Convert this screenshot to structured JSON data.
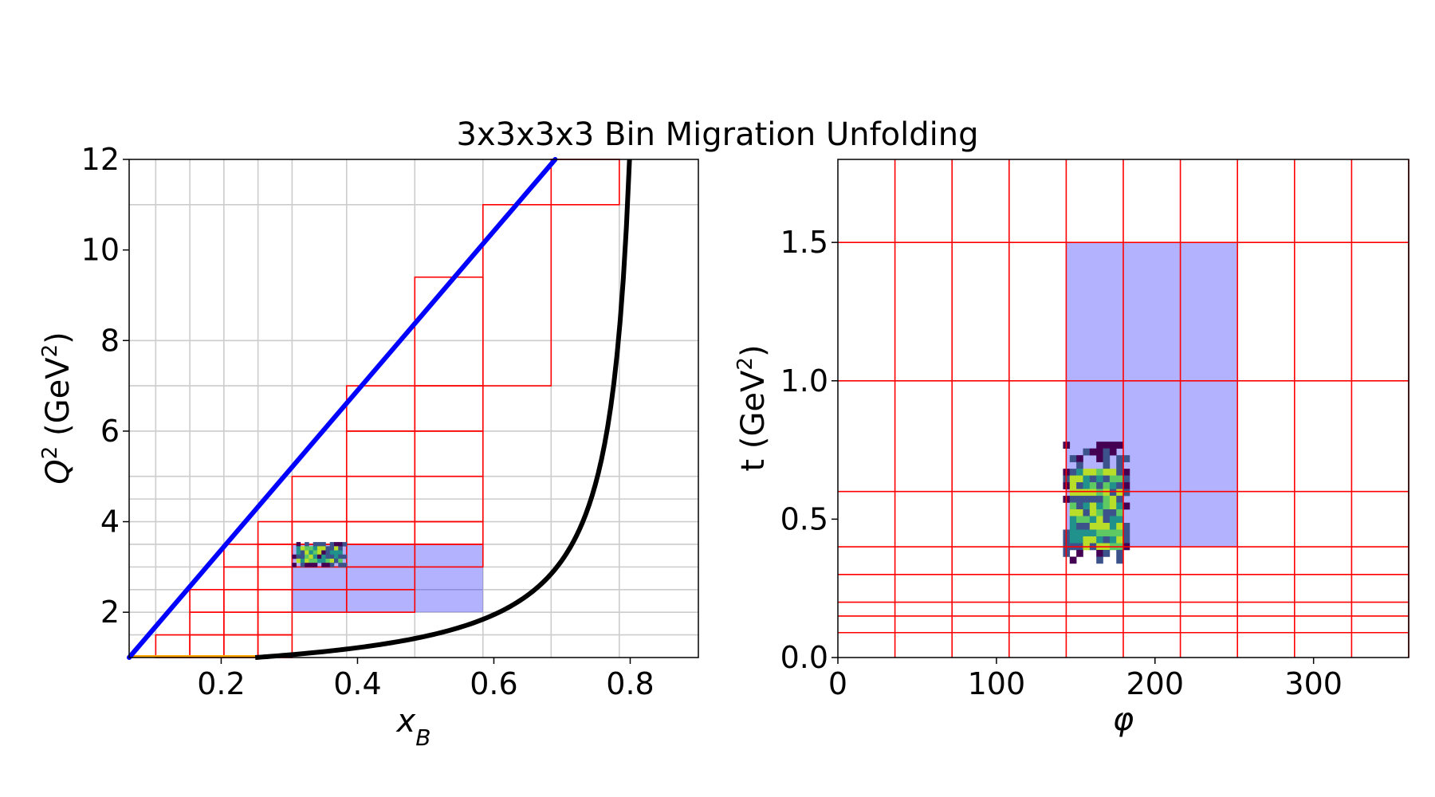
{
  "figure": {
    "title": "3x3x3x3 Bin Migration Unfolding"
  },
  "chart_data": [
    {
      "type": "heatmap",
      "xlabel_main": "x",
      "xlabel_sub": "B",
      "ylabel_main": "Q",
      "ylabel_sup": "2",
      "ylabel_mid": " (GeV",
      "ylabel_sup2": "2",
      "ylabel_end": ")",
      "xlim": [
        0.065,
        0.9
      ],
      "ylim": [
        1,
        12
      ],
      "x_ticks": [
        0.2,
        0.4,
        0.6,
        0.8
      ],
      "x_tick_labels": [
        "0.2",
        "0.4",
        "0.6",
        "0.8"
      ],
      "y_ticks": [
        2,
        4,
        6,
        8,
        10,
        12
      ],
      "y_tick_labels": [
        "2",
        "4",
        "6",
        "8",
        "10",
        "12"
      ],
      "grid": true,
      "grid_x": [
        0.104,
        0.154,
        0.204,
        0.254,
        0.304,
        0.384,
        0.484,
        0.584,
        0.684,
        0.784
      ],
      "grid_y": [
        1.5,
        2.0,
        2.5,
        3.0,
        3.5,
        4.0,
        4.5,
        5.0,
        6.0,
        7.0,
        8.0,
        11.0
      ],
      "red_bins": [
        {
          "x": [
            0.104,
            0.154
          ],
          "y": [
            1.0,
            1.5
          ]
        },
        {
          "x": [
            0.154,
            0.204
          ],
          "y": [
            1.0,
            1.5
          ]
        },
        {
          "x": [
            0.154,
            0.204
          ],
          "y": [
            1.5,
            2.0
          ]
        },
        {
          "x": [
            0.154,
            0.204
          ],
          "y": [
            2.0,
            2.5
          ]
        },
        {
          "x": [
            0.204,
            0.254
          ],
          "y": [
            1.0,
            1.5
          ]
        },
        {
          "x": [
            0.204,
            0.254
          ],
          "y": [
            1.5,
            2.0
          ]
        },
        {
          "x": [
            0.204,
            0.254
          ],
          "y": [
            2.0,
            2.5
          ]
        },
        {
          "x": [
            0.204,
            0.254
          ],
          "y": [
            2.5,
            3.0
          ]
        },
        {
          "x": [
            0.204,
            0.254
          ],
          "y": [
            3.0,
            3.5
          ]
        },
        {
          "x": [
            0.254,
            0.304
          ],
          "y": [
            1.0,
            1.5
          ]
        },
        {
          "x": [
            0.254,
            0.304
          ],
          "y": [
            1.5,
            2.0
          ]
        },
        {
          "x": [
            0.254,
            0.304
          ],
          "y": [
            2.0,
            2.5
          ]
        },
        {
          "x": [
            0.254,
            0.304
          ],
          "y": [
            2.5,
            3.0
          ]
        },
        {
          "x": [
            0.254,
            0.304
          ],
          "y": [
            3.0,
            3.5
          ]
        },
        {
          "x": [
            0.254,
            0.304
          ],
          "y": [
            3.5,
            4.0
          ]
        },
        {
          "x": [
            0.304,
            0.384
          ],
          "y": [
            2.0,
            2.5
          ]
        },
        {
          "x": [
            0.304,
            0.384
          ],
          "y": [
            2.5,
            3.0
          ]
        },
        {
          "x": [
            0.304,
            0.384
          ],
          "y": [
            3.0,
            3.5
          ]
        },
        {
          "x": [
            0.304,
            0.384
          ],
          "y": [
            3.5,
            4.0
          ]
        },
        {
          "x": [
            0.304,
            0.384
          ],
          "y": [
            4.0,
            5.0
          ]
        },
        {
          "x": [
            0.384,
            0.484
          ],
          "y": [
            2.0,
            2.5
          ]
        },
        {
          "x": [
            0.384,
            0.484
          ],
          "y": [
            2.5,
            3.0
          ]
        },
        {
          "x": [
            0.384,
            0.484
          ],
          "y": [
            3.0,
            3.5
          ]
        },
        {
          "x": [
            0.384,
            0.484
          ],
          "y": [
            3.5,
            4.0
          ]
        },
        {
          "x": [
            0.384,
            0.484
          ],
          "y": [
            4.0,
            5.0
          ]
        },
        {
          "x": [
            0.384,
            0.484
          ],
          "y": [
            5.0,
            6.0
          ]
        },
        {
          "x": [
            0.384,
            0.484
          ],
          "y": [
            6.0,
            7.0
          ]
        },
        {
          "x": [
            0.484,
            0.584
          ],
          "y": [
            3.0,
            3.5
          ]
        },
        {
          "x": [
            0.484,
            0.584
          ],
          "y": [
            3.5,
            4.0
          ]
        },
        {
          "x": [
            0.484,
            0.584
          ],
          "y": [
            4.0,
            5.0
          ]
        },
        {
          "x": [
            0.484,
            0.584
          ],
          "y": [
            5.0,
            6.0
          ]
        },
        {
          "x": [
            0.484,
            0.584
          ],
          "y": [
            6.0,
            7.0
          ]
        },
        {
          "x": [
            0.484,
            0.584
          ],
          "y": [
            7.0,
            9.4
          ]
        },
        {
          "x": [
            0.584,
            0.684
          ],
          "y": [
            7.0,
            11.0
          ]
        },
        {
          "x": [
            0.684,
            0.784
          ],
          "y": [
            11.0,
            12.0
          ]
        }
      ],
      "highlight_bin": {
        "x": [
          0.304,
          0.584
        ],
        "y": [
          2.0,
          3.5
        ]
      },
      "blue_line": {
        "x": [
          0.065,
          0.69
        ],
        "y": [
          1.0,
          12.0
        ]
      },
      "black_curve": {
        "x_start": 0.25,
        "x_end": 0.799
      },
      "orange_line": {
        "x": [
          0.065,
          0.25
        ],
        "y": [
          1.0,
          1.0
        ]
      },
      "heatmap_cells": {
        "x_range": [
          0.304,
          0.384
        ],
        "y_range": [
          3.0,
          3.55
        ],
        "nx": 13,
        "ny": 6
      }
    },
    {
      "type": "heatmap",
      "xlabel": "φ",
      "ylabel_main": "t (GeV",
      "ylabel_sup": "2",
      "ylabel_end": ")",
      "xlim": [
        0,
        360
      ],
      "ylim": [
        0,
        1.8
      ],
      "x_ticks": [
        0,
        100,
        200,
        300
      ],
      "x_tick_labels": [
        "0",
        "100",
        "200",
        "300"
      ],
      "y_ticks": [
        0.0,
        0.5,
        1.0,
        1.5
      ],
      "y_tick_labels": [
        "0.0",
        "0.5",
        "1.0",
        "1.5"
      ],
      "grid_x": [
        36,
        72,
        108,
        144,
        180,
        216,
        252,
        288,
        324,
        360
      ],
      "grid_y": [
        0.09,
        0.15,
        0.2,
        0.3,
        0.4,
        0.6,
        1.0,
        1.5
      ],
      "highlight_bin": {
        "x": [
          144,
          252
        ],
        "y": [
          0.4,
          1.5
        ]
      },
      "heatmap_cells": {
        "x_range": [
          142,
          184
        ],
        "y_range": [
          0.34,
          0.78
        ],
        "nx": 10,
        "ny": 18
      }
    }
  ]
}
